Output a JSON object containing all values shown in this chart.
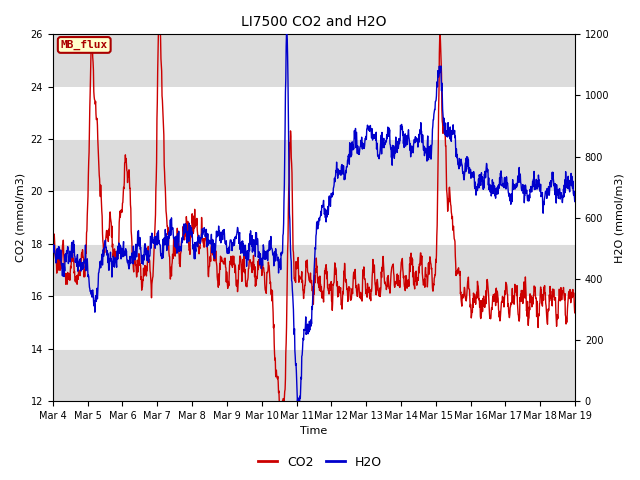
{
  "title": "LI7500 CO2 and H2O",
  "ylabel_left": "CO2 (mmol/m3)",
  "ylabel_right": "H2O (mmol/m3)",
  "xlabel": "Time",
  "ylim_left": [
    12,
    26
  ],
  "ylim_right": [
    0,
    1200
  ],
  "yticks_left": [
    12,
    14,
    16,
    18,
    20,
    22,
    24,
    26
  ],
  "yticks_right": [
    0,
    200,
    400,
    600,
    800,
    1000,
    1200
  ],
  "xtick_labels": [
    "Mar 4",
    "Mar 5",
    "Mar 6",
    "Mar 7",
    "Mar 8",
    "Mar 9",
    "Mar 10",
    "Mar 11",
    "Mar 12",
    "Mar 13",
    "Mar 14",
    "Mar 15",
    "Mar 16",
    "Mar 17",
    "Mar 18",
    "Mar 19"
  ],
  "co2_color": "#cc0000",
  "h2o_color": "#0000cc",
  "annotation_text": "MB_flux",
  "annotation_bg": "#ffffcc",
  "annotation_border": "#aa0000",
  "plot_bg": "#ffffff",
  "band_color": "#dcdcdc",
  "linewidth": 1.0,
  "legend_co2": "CO2",
  "legend_h2o": "H2O",
  "title_fontsize": 10,
  "axis_fontsize": 8,
  "tick_fontsize": 7
}
